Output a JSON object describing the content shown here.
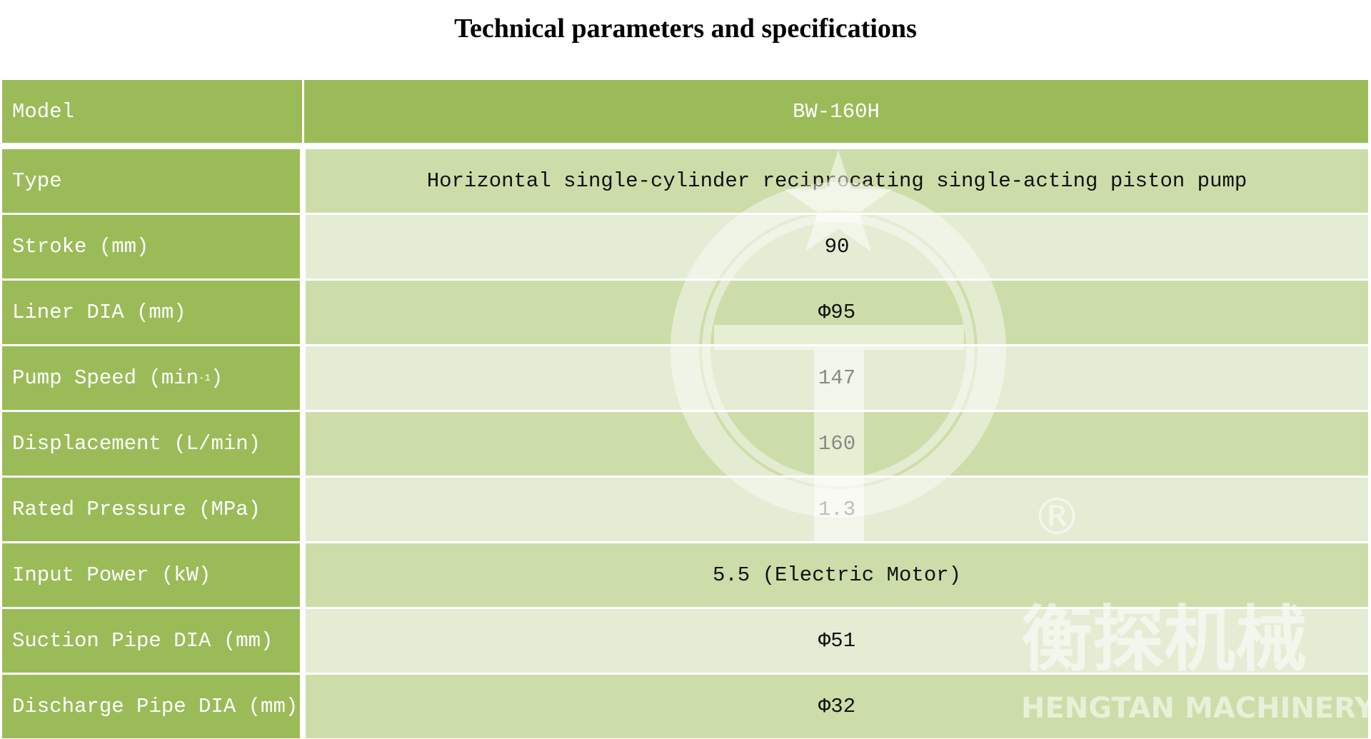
{
  "title": "Technical parameters and specifications",
  "header": {
    "label": "Model",
    "value": "BW-160H"
  },
  "rows": [
    {
      "label": "Type",
      "value": "Horizontal single-cylinder reciprocating single-acting piston pump"
    },
    {
      "label": "Stroke (mm)",
      "value": "90"
    },
    {
      "label": "Liner DIA (mm)",
      "value": "Φ95"
    },
    {
      "label": "Pump Speed (min",
      "sup": "-1",
      "label_end": ")",
      "value": "147"
    },
    {
      "label": "Displacement (L/min)",
      "value": "160"
    },
    {
      "label": "Rated Pressure (MPa)",
      "value": "1.3"
    },
    {
      "label": "Input Power (kW)",
      "value": "5.5 (Electric Motor)"
    },
    {
      "label": "Suction Pipe DIA (mm)",
      "value": "Φ51"
    },
    {
      "label": "Discharge Pipe DIA (mm)",
      "value": "Φ32"
    }
  ],
  "watermark": {
    "chinese": "衡探机械",
    "english": "HENGTAN MACHINERY",
    "registered": "®"
  },
  "colors": {
    "header": "#9bbb59",
    "row_dark": "#cddda9",
    "row_light": "#e4ecd4"
  }
}
